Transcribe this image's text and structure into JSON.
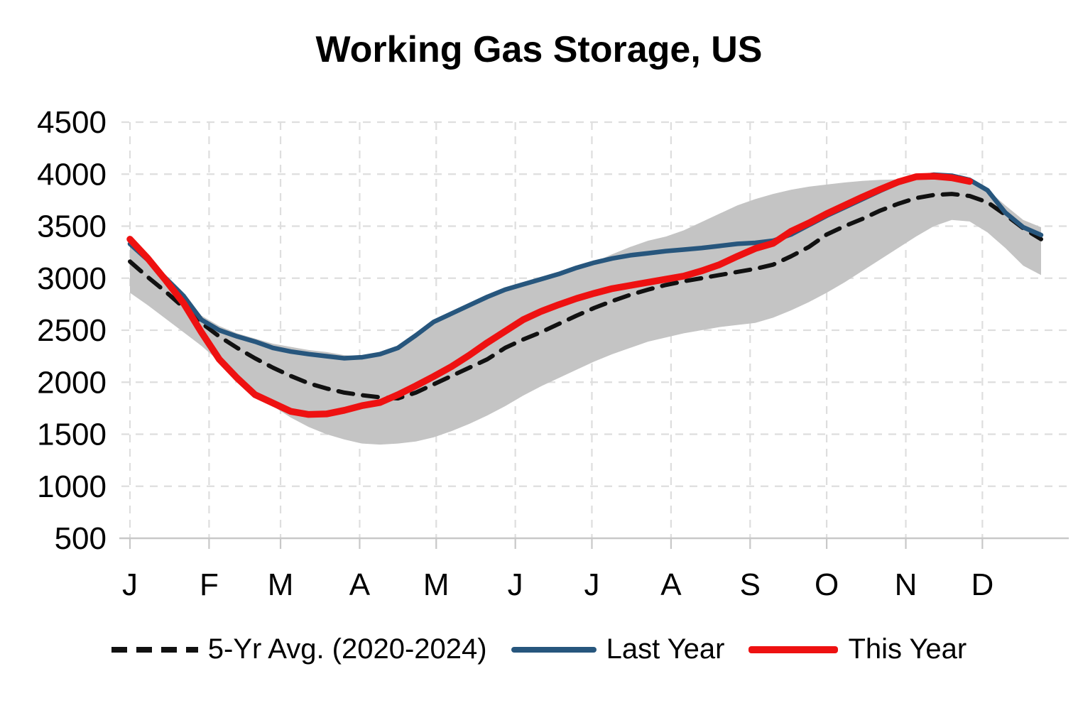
{
  "title": {
    "text": "Working Gas Storage, US"
  },
  "legend": {
    "items": [
      {
        "label": "5-Yr Avg. (2020-2024)",
        "swatch": "black-dashed-line"
      },
      {
        "label": "Last Year",
        "swatch": "blue-line"
      },
      {
        "label": "This Year",
        "swatch": "red-line"
      }
    ]
  },
  "colors": {
    "five_yr_avg": "#111111",
    "last_year": "#27567d",
    "this_year": "#ee1111",
    "band": "#c4c4c4",
    "gridline": "#dedede",
    "axis": "#c8c8c8",
    "text": "#000000"
  },
  "chart_data": {
    "type": "line",
    "title": "Working Gas Storage, US",
    "weeks": 52,
    "grid": "dashed",
    "legend_position": "bottom",
    "x_axis": {
      "labels": [
        "J",
        "F",
        "M",
        "A",
        "M",
        "J",
        "J",
        "A",
        "S",
        "O",
        "N",
        "D"
      ],
      "month_day_of_year": [
        0,
        31,
        59,
        90,
        120,
        151,
        181,
        212,
        243,
        273,
        304,
        334
      ]
    },
    "y_axis": {
      "min": 500,
      "max": 4500,
      "step": 500,
      "tick_labels": [
        "500",
        "1000",
        "1500",
        "2000",
        "2500",
        "3000",
        "3500",
        "4000",
        "4500"
      ]
    },
    "band": {
      "name": "5-year range (2020-2024)",
      "color_key": "band",
      "max": [
        3310,
        3150,
        3000,
        2850,
        2640,
        2540,
        2470,
        2420,
        2370,
        2340,
        2310,
        2290,
        2260,
        2250,
        2280,
        2340,
        2455,
        2585,
        2665,
        2745,
        2825,
        2895,
        2945,
        2995,
        3045,
        3105,
        3155,
        3230,
        3300,
        3360,
        3400,
        3460,
        3540,
        3620,
        3700,
        3760,
        3810,
        3850,
        3880,
        3900,
        3920,
        3935,
        3945,
        3950,
        3955,
        3960,
        3950,
        3930,
        3850,
        3700,
        3560,
        3490
      ],
      "min": [
        2860,
        2740,
        2610,
        2480,
        2350,
        2200,
        2050,
        1900,
        1770,
        1660,
        1570,
        1500,
        1450,
        1410,
        1400,
        1410,
        1430,
        1470,
        1530,
        1600,
        1680,
        1770,
        1870,
        1960,
        2040,
        2120,
        2200,
        2270,
        2330,
        2390,
        2430,
        2470,
        2500,
        2530,
        2550,
        2570,
        2620,
        2690,
        2770,
        2860,
        2960,
        3070,
        3180,
        3290,
        3400,
        3500,
        3560,
        3545,
        3440,
        3290,
        3120,
        3030
      ]
    },
    "series": [
      {
        "name": "5-Yr Avg. (2020-2024)",
        "style": "dashed",
        "color_key": "five_yr_avg",
        "values": [
          3160,
          3010,
          2870,
          2720,
          2570,
          2440,
          2330,
          2230,
          2140,
          2060,
          1990,
          1940,
          1900,
          1875,
          1855,
          1845,
          1900,
          1980,
          2060,
          2140,
          2220,
          2330,
          2410,
          2480,
          2560,
          2640,
          2715,
          2780,
          2840,
          2890,
          2935,
          2970,
          3000,
          3030,
          3060,
          3090,
          3130,
          3210,
          3300,
          3420,
          3500,
          3570,
          3650,
          3715,
          3770,
          3800,
          3810,
          3790,
          3730,
          3610,
          3480,
          3375
        ]
      },
      {
        "name": "Last Year",
        "style": "solid",
        "color_key": "last_year",
        "values": [
          3330,
          3175,
          3000,
          2830,
          2600,
          2500,
          2440,
          2390,
          2330,
          2295,
          2270,
          2250,
          2230,
          2240,
          2270,
          2330,
          2450,
          2580,
          2660,
          2740,
          2820,
          2890,
          2940,
          2990,
          3040,
          3100,
          3150,
          3190,
          3220,
          3240,
          3260,
          3275,
          3290,
          3310,
          3330,
          3340,
          3360,
          3420,
          3510,
          3600,
          3680,
          3760,
          3840,
          3915,
          3970,
          3995,
          3985,
          3945,
          3845,
          3630,
          3490,
          3415
        ]
      },
      {
        "name": "This Year",
        "style": "solid",
        "color_key": "this_year",
        "values": [
          3375,
          3190,
          2980,
          2760,
          2480,
          2220,
          2040,
          1880,
          1800,
          1720,
          1690,
          1695,
          1730,
          1775,
          1805,
          1880,
          1965,
          2055,
          2150,
          2260,
          2380,
          2490,
          2600,
          2680,
          2745,
          2805,
          2855,
          2900,
          2930,
          2960,
          2990,
          3020,
          3070,
          3130,
          3210,
          3285,
          3335,
          3450,
          3530,
          3620,
          3700,
          3780,
          3855,
          3925,
          3975,
          3980,
          3965,
          3930
        ]
      }
    ]
  }
}
